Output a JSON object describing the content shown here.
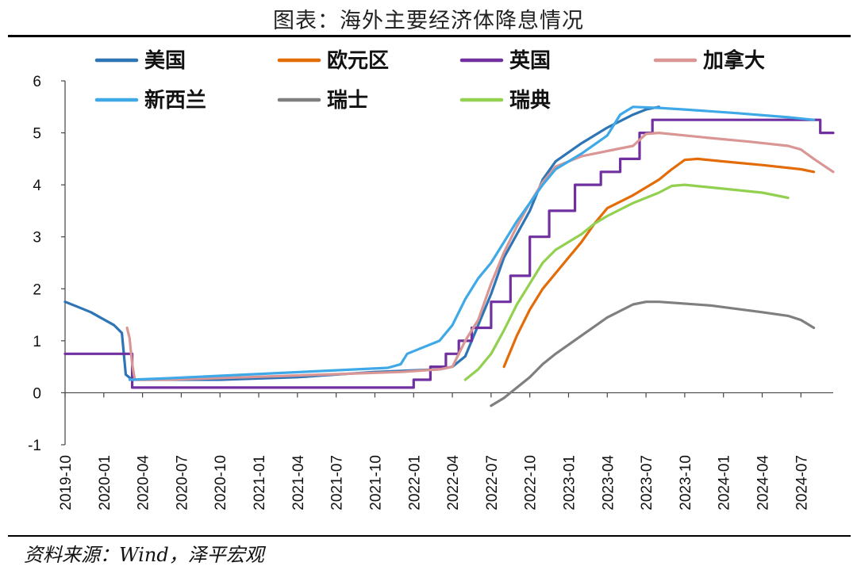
{
  "title": "图表：海外主要经济体降息情况",
  "source": "资料来源：Wind，泽平宏观",
  "chart_data": {
    "type": "line",
    "ylim": [
      -1,
      6
    ],
    "yticks": [
      "6",
      "5",
      "4",
      "3",
      "2",
      "1",
      "0",
      "-1"
    ],
    "xticks": [
      "2019-10",
      "2020-01",
      "2020-04",
      "2020-07",
      "2020-10",
      "2021-01",
      "2021-04",
      "2021-07",
      "2021-10",
      "2022-01",
      "2022-04",
      "2022-07",
      "2022-10",
      "2023-01",
      "2023-04",
      "2023-07",
      "2023-10",
      "2024-01",
      "2024-04",
      "2024-07"
    ],
    "xrange_months": [
      0,
      59.5
    ],
    "series": [
      {
        "name": "美国",
        "color": "#2e75b6",
        "step": false,
        "points": [
          [
            0,
            1.75
          ],
          [
            1,
            1.65
          ],
          [
            2,
            1.55
          ],
          [
            3.8,
            1.3
          ],
          [
            4.4,
            1.15
          ],
          [
            4.7,
            0.35
          ],
          [
            5.2,
            0.25
          ],
          [
            8,
            0.25
          ],
          [
            12,
            0.25
          ],
          [
            18,
            0.3
          ],
          [
            24,
            0.4
          ],
          [
            29,
            0.45
          ],
          [
            30,
            0.5
          ],
          [
            31,
            0.7
          ],
          [
            32,
            1.3
          ],
          [
            33,
            1.9
          ],
          [
            34,
            2.6
          ],
          [
            36,
            3.5
          ],
          [
            37,
            4.1
          ],
          [
            38,
            4.45
          ],
          [
            40,
            4.8
          ],
          [
            42,
            5.1
          ],
          [
            44,
            5.35
          ],
          [
            45,
            5.45
          ],
          [
            46,
            5.5
          ]
        ]
      },
      {
        "name": "欧元区",
        "color": "#e36c09",
        "step": false,
        "points": [
          [
            34,
            0.5
          ],
          [
            35,
            1.1
          ],
          [
            36,
            1.6
          ],
          [
            37,
            2.0
          ],
          [
            38,
            2.3
          ],
          [
            39,
            2.6
          ],
          [
            40,
            2.9
          ],
          [
            41,
            3.25
          ],
          [
            42,
            3.55
          ],
          [
            44,
            3.8
          ],
          [
            46,
            4.1
          ],
          [
            47,
            4.3
          ],
          [
            48,
            4.48
          ],
          [
            49,
            4.5
          ],
          [
            51,
            4.45
          ],
          [
            54,
            4.38
          ],
          [
            57,
            4.3
          ],
          [
            58,
            4.25
          ]
        ]
      },
      {
        "name": "英国",
        "color": "#7030a0",
        "step": true,
        "points": [
          [
            0,
            0.75
          ],
          [
            5.2,
            0.75
          ],
          [
            5.2,
            0.1
          ],
          [
            27,
            0.1
          ],
          [
            27,
            0.25
          ],
          [
            28.3,
            0.25
          ],
          [
            28.3,
            0.5
          ],
          [
            29.5,
            0.5
          ],
          [
            29.5,
            0.75
          ],
          [
            30.5,
            0.75
          ],
          [
            30.5,
            1.0
          ],
          [
            31.5,
            1.0
          ],
          [
            31.5,
            1.25
          ],
          [
            33,
            1.25
          ],
          [
            33,
            1.75
          ],
          [
            34.5,
            1.75
          ],
          [
            34.5,
            2.25
          ],
          [
            36,
            2.25
          ],
          [
            36,
            3.0
          ],
          [
            37.5,
            3.0
          ],
          [
            37.5,
            3.5
          ],
          [
            39.5,
            3.5
          ],
          [
            39.5,
            4.0
          ],
          [
            41.5,
            4.0
          ],
          [
            41.5,
            4.25
          ],
          [
            43,
            4.25
          ],
          [
            43,
            4.5
          ],
          [
            44.5,
            4.5
          ],
          [
            44.5,
            5.0
          ],
          [
            45.5,
            5.0
          ],
          [
            45.5,
            5.25
          ],
          [
            58.5,
            5.25
          ],
          [
            58.5,
            5.0
          ],
          [
            59.5,
            5.0
          ]
        ]
      },
      {
        "name": "加拿大",
        "color": "#d99694",
        "step": false,
        "points": [
          [
            4.8,
            1.25
          ],
          [
            5.0,
            1.05
          ],
          [
            5.2,
            0.55
          ],
          [
            5.4,
            0.25
          ],
          [
            8,
            0.25
          ],
          [
            14,
            0.3
          ],
          [
            20,
            0.35
          ],
          [
            26,
            0.4
          ],
          [
            29,
            0.45
          ],
          [
            30,
            0.5
          ],
          [
            30.5,
            0.75
          ],
          [
            31,
            1.0
          ],
          [
            32,
            1.4
          ],
          [
            33,
            2.1
          ],
          [
            34,
            2.7
          ],
          [
            35,
            3.2
          ],
          [
            36,
            3.65
          ],
          [
            37,
            4.05
          ],
          [
            38,
            4.35
          ],
          [
            40,
            4.55
          ],
          [
            42,
            4.65
          ],
          [
            44,
            4.75
          ],
          [
            45,
            4.98
          ],
          [
            46,
            5.0
          ],
          [
            50,
            4.9
          ],
          [
            53,
            4.83
          ],
          [
            56,
            4.75
          ],
          [
            57,
            4.68
          ],
          [
            58,
            4.5
          ],
          [
            59.5,
            4.25
          ]
        ]
      },
      {
        "name": "新西兰",
        "color": "#3fa9e8",
        "step": false,
        "points": [
          [
            5,
            0.25
          ],
          [
            8,
            0.28
          ],
          [
            14,
            0.35
          ],
          [
            20,
            0.42
          ],
          [
            25,
            0.48
          ],
          [
            26,
            0.55
          ],
          [
            26.5,
            0.75
          ],
          [
            27.5,
            0.85
          ],
          [
            29,
            1.0
          ],
          [
            30,
            1.3
          ],
          [
            31,
            1.8
          ],
          [
            32,
            2.2
          ],
          [
            33,
            2.5
          ],
          [
            34,
            2.9
          ],
          [
            35,
            3.3
          ],
          [
            36,
            3.65
          ],
          [
            37,
            4.0
          ],
          [
            38,
            4.3
          ],
          [
            40,
            4.6
          ],
          [
            42,
            4.95
          ],
          [
            43,
            5.35
          ],
          [
            44,
            5.5
          ],
          [
            46,
            5.48
          ],
          [
            48,
            5.45
          ],
          [
            52,
            5.38
          ],
          [
            56,
            5.3
          ],
          [
            58,
            5.25
          ]
        ]
      },
      {
        "name": "瑞士",
        "color": "#7f7f7f",
        "step": false,
        "points": [
          [
            33,
            -0.25
          ],
          [
            34,
            -0.1
          ],
          [
            35,
            0.1
          ],
          [
            36,
            0.3
          ],
          [
            37,
            0.55
          ],
          [
            38,
            0.75
          ],
          [
            40,
            1.1
          ],
          [
            42,
            1.45
          ],
          [
            44,
            1.7
          ],
          [
            45,
            1.75
          ],
          [
            46,
            1.75
          ],
          [
            50,
            1.68
          ],
          [
            54,
            1.55
          ],
          [
            56,
            1.48
          ],
          [
            57,
            1.4
          ],
          [
            58,
            1.25
          ]
        ]
      },
      {
        "name": "瑞典",
        "color": "#92d050",
        "step": false,
        "points": [
          [
            31,
            0.25
          ],
          [
            32,
            0.45
          ],
          [
            33,
            0.75
          ],
          [
            34,
            1.2
          ],
          [
            35,
            1.7
          ],
          [
            36,
            2.1
          ],
          [
            37,
            2.5
          ],
          [
            38,
            2.75
          ],
          [
            40,
            3.05
          ],
          [
            41,
            3.25
          ],
          [
            42,
            3.4
          ],
          [
            44,
            3.65
          ],
          [
            46,
            3.85
          ],
          [
            47,
            3.98
          ],
          [
            48,
            4.0
          ],
          [
            50,
            3.95
          ],
          [
            54,
            3.85
          ],
          [
            56,
            3.75
          ]
        ]
      }
    ]
  }
}
